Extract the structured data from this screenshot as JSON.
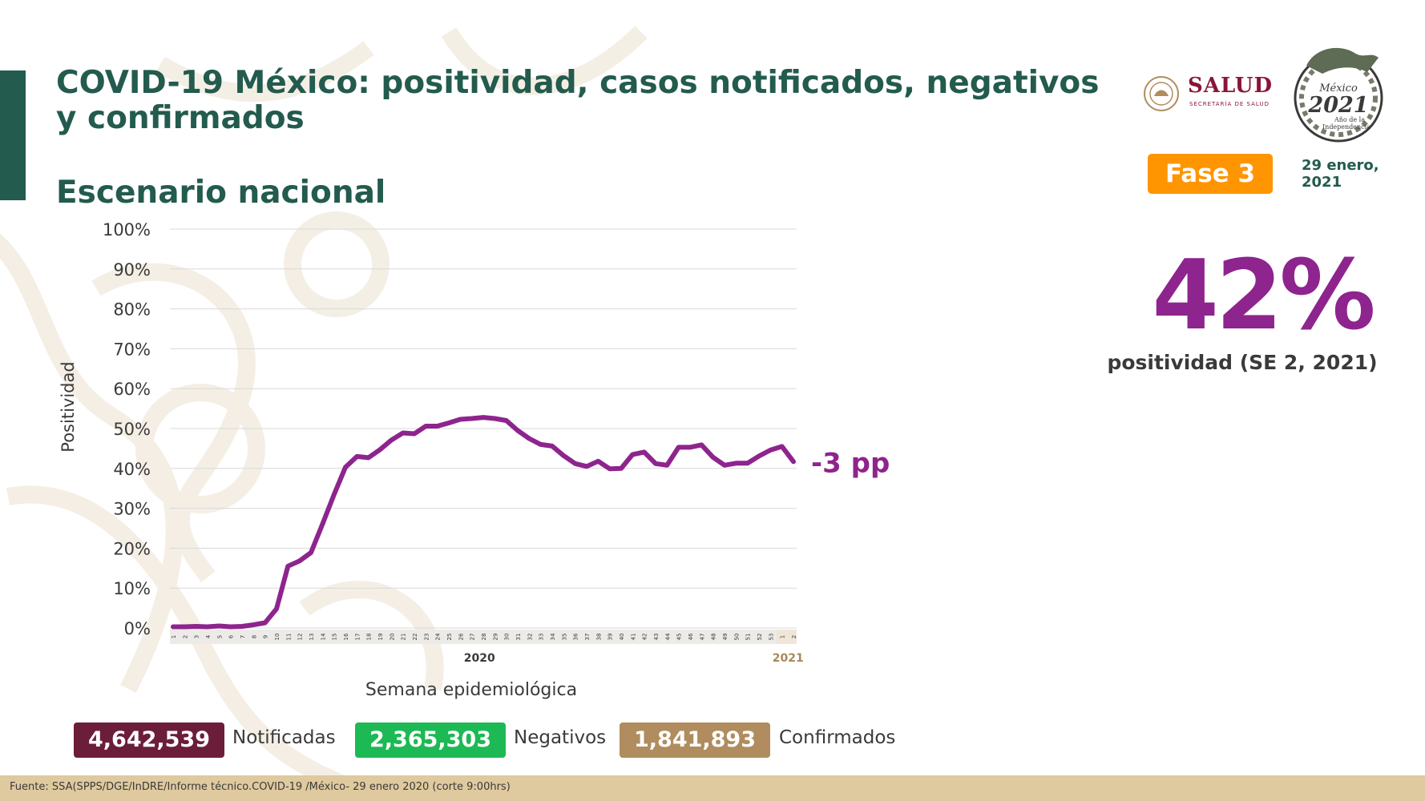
{
  "header": {
    "title": "COVID-19 México: positividad, casos notificados, negativos y confirmados",
    "subtitle": "Escenario nacional",
    "salud_logo_text": "SALUD",
    "salud_logo_subtext": "SECRETARÍA DE SALUD",
    "emblem_text_top": "México",
    "emblem_year": "2021",
    "emblem_text_bottom_1": "Año de la",
    "emblem_text_bottom_2": "Independencia",
    "phase_label": "Fase 3",
    "date_line1": "29 enero,",
    "date_line2": "2021"
  },
  "highlight": {
    "value": "42%",
    "caption": "positividad (SE 2, 2021)",
    "change_label": "-3 pp"
  },
  "stats": {
    "notificadas_value": "4,642,539",
    "notificadas_label": "Notificadas",
    "negativos_value": "2,365,303",
    "negativos_label": "Negativos",
    "confirmados_value": "1,841,893",
    "confirmados_label": "Confirmados"
  },
  "footer": {
    "source": "Fuente: SSA(SPPS/DGE/InDRE/Informe técnico.COVID-19 /México- 29 enero 2020 (corte 9:00hrs)"
  },
  "colors": {
    "brand_green": "#235b4e",
    "line_purple": "#8e248e",
    "phase_orange": "#ff9500",
    "notificadas_bg": "#6b1d3a",
    "negativos_bg": "#1db954",
    "confirmados_bg": "#b08c5e",
    "footer_bg": "#dfc99e"
  },
  "chart_data": {
    "type": "line",
    "xlabel": "Semana epidemiológica",
    "ylabel": "Positividad",
    "ylim": [
      0,
      100
    ],
    "y_ticks": [
      "0%",
      "10%",
      "20%",
      "30%",
      "40%",
      "50%",
      "60%",
      "70%",
      "80%",
      "90%",
      "100%"
    ],
    "year_labels": [
      "2020",
      "2021"
    ],
    "grid": true,
    "x": [
      "1",
      "2",
      "3",
      "4",
      "5",
      "6",
      "7",
      "8",
      "9",
      "10",
      "11",
      "12",
      "13",
      "14",
      "15",
      "16",
      "17",
      "18",
      "19",
      "20",
      "21",
      "22",
      "23",
      "24",
      "25",
      "26",
      "27",
      "28",
      "29",
      "30",
      "31",
      "32",
      "33",
      "34",
      "35",
      "36",
      "37",
      "38",
      "39",
      "40",
      "41",
      "42",
      "43",
      "44",
      "45",
      "46",
      "47",
      "48",
      "49",
      "50",
      "51",
      "52",
      "53",
      "1",
      "2"
    ],
    "series": [
      {
        "values": [
          0.3,
          0.3,
          0.4,
          0.3,
          0.5,
          0.3,
          0.4,
          0.8,
          1.3,
          4.8,
          15.5,
          16.8,
          18.9,
          26.0,
          33.4,
          40.3,
          43.0,
          42.7,
          44.7,
          47.1,
          48.9,
          48.7,
          50.6,
          50.6,
          51.4,
          52.3,
          52.5,
          52.8,
          52.5,
          52.0,
          49.5,
          47.5,
          46.0,
          45.6,
          43.2,
          41.2,
          40.5,
          41.8,
          39.9,
          40.0,
          43.5,
          44.1,
          41.2,
          40.8,
          45.3,
          45.3,
          45.9,
          42.8,
          40.8,
          41.3,
          41.3,
          43.1,
          44.6,
          45.5,
          41.7
        ]
      }
    ]
  }
}
